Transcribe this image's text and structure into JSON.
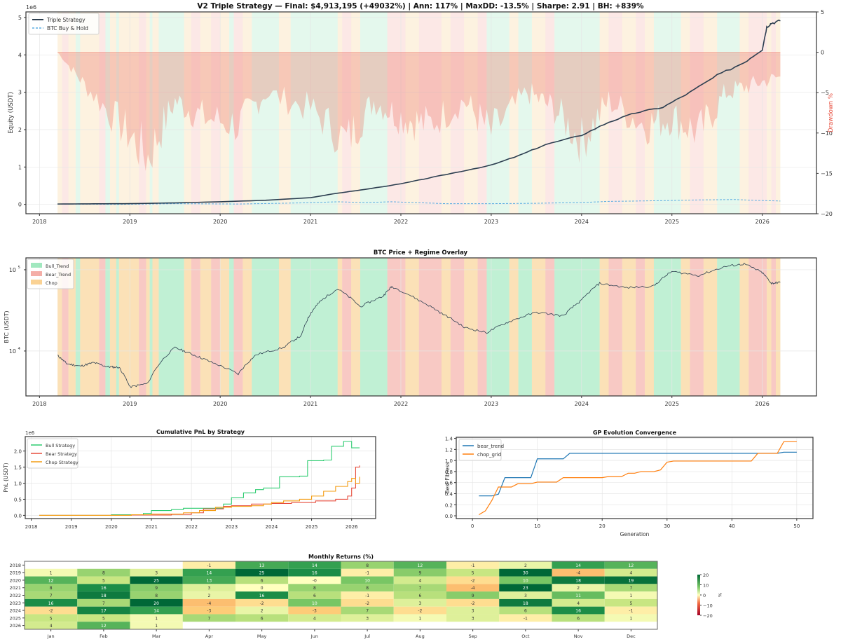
{
  "colors": {
    "bull": "#2ecc71",
    "bear": "#e74c3c",
    "chop": "#f39c12",
    "equity": "#2c3e50",
    "bh": "#5dade2",
    "drawdown": "#e74c3c",
    "bear_trend_line": "#1f77b4",
    "chop_grid_line": "#ff7f0e"
  },
  "chart_data": [
    {
      "id": "equity",
      "type": "line",
      "title": "V2 Triple Strategy — Final: $4,913,195 (+49032%) | Ann: 117% | MaxDD: -13.5% | Sharpe: 2.91 | BH: +839%",
      "ylabel": "Equity (USDT)",
      "y_multiplier": "1e6",
      "y2label": "Drawdown %",
      "xlim": [
        2017.85,
        2026.6
      ],
      "ylim": [
        -0.25,
        5.15
      ],
      "y2lim": [
        -20,
        5
      ],
      "xticks": [
        "2018",
        "2019",
        "2020",
        "2021",
        "2022",
        "2023",
        "2024",
        "2025",
        "2026"
      ],
      "yticks": [
        "0",
        "1",
        "2",
        "3",
        "4",
        "5"
      ],
      "y2ticks": [
        "5",
        "0",
        "−5",
        "−10",
        "−15",
        "−20"
      ],
      "legend": [
        "Triple Strategy",
        "BTC Buy & Hold"
      ],
      "legend_position": "top-left",
      "series": [
        {
          "name": "Triple Strategy",
          "x": [
            2018.2,
            2018.6,
            2019.0,
            2019.5,
            2020.0,
            2020.5,
            2021.0,
            2021.3,
            2021.6,
            2022.0,
            2022.3,
            2022.6,
            2023.0,
            2023.3,
            2023.6,
            2024.0,
            2024.3,
            2024.6,
            2024.9,
            2025.2,
            2025.5,
            2025.8,
            2026.0,
            2026.05,
            2026.1,
            2026.2
          ],
          "y": [
            0.01,
            0.015,
            0.02,
            0.04,
            0.07,
            0.11,
            0.18,
            0.3,
            0.4,
            0.55,
            0.7,
            0.85,
            1.05,
            1.3,
            1.6,
            1.85,
            2.2,
            2.45,
            2.6,
            3.0,
            3.45,
            3.8,
            4.15,
            4.75,
            4.85,
            4.91
          ]
        },
        {
          "name": "BTC Buy & Hold",
          "x": [
            2018.2,
            2018.9,
            2019.5,
            2020.2,
            2020.9,
            2021.3,
            2021.6,
            2021.9,
            2022.5,
            2023.0,
            2023.5,
            2024.0,
            2024.3,
            2024.9,
            2025.3,
            2025.7,
            2025.9,
            2026.2
          ],
          "y": [
            0.01,
            0.0,
            0.02,
            0.01,
            0.04,
            0.07,
            0.05,
            0.07,
            0.02,
            0.02,
            0.03,
            0.05,
            0.08,
            0.1,
            0.12,
            0.13,
            0.11,
            0.09
          ]
        }
      ],
      "drawdown": {
        "x": [
          2018.2,
          2018.5,
          2018.9,
          2019.2,
          2019.5,
          2019.8,
          2020.2,
          2020.5,
          2021.0,
          2021.4,
          2021.7,
          2022.0,
          2022.3,
          2022.7,
          2023.0,
          2023.4,
          2023.7,
          2024.0,
          2024.3,
          2024.7,
          2025.0,
          2025.3,
          2025.6,
          2025.9,
          2026.2
        ],
        "y": [
          0,
          -4,
          -9,
          -13,
          -6,
          -8,
          -9,
          -5,
          -7,
          -11,
          -6,
          -8,
          -9,
          -6,
          -10,
          -5,
          -7,
          -11,
          -6,
          -9,
          -8,
          -10,
          -5,
          -4,
          -3
        ]
      }
    },
    {
      "id": "btc",
      "type": "line",
      "title": "BTC Price + Regime Overlay",
      "ylabel": "BTC (USDT)",
      "yscale": "log",
      "xlim": [
        2017.85,
        2026.6
      ],
      "ylim": [
        2800,
        140000
      ],
      "xticks": [
        "2018",
        "2019",
        "2020",
        "2021",
        "2022",
        "2023",
        "2024",
        "2025",
        "2026"
      ],
      "yticks": [
        {
          "base": "10",
          "exp": "4",
          "value": 10000
        },
        {
          "base": "10",
          "exp": "5",
          "value": 100000
        }
      ],
      "legend": [
        "Bull_Trend",
        "Bear_Trend",
        "Chop"
      ],
      "legend_position": "top-left",
      "x": [
        2018.2,
        2018.3,
        2018.45,
        2018.6,
        2018.75,
        2018.88,
        2019.0,
        2019.2,
        2019.5,
        2019.7,
        2019.9,
        2020.2,
        2020.4,
        2020.7,
        2020.9,
        2021.0,
        2021.1,
        2021.3,
        2021.55,
        2021.8,
        2021.9,
        2022.2,
        2022.45,
        2022.7,
        2022.95,
        2023.2,
        2023.5,
        2023.8,
        2024.0,
        2024.2,
        2024.5,
        2024.8,
        2025.0,
        2025.3,
        2025.6,
        2025.8,
        2026.0,
        2026.1,
        2026.2
      ],
      "y": [
        8800,
        7000,
        6500,
        7200,
        6400,
        6300,
        3600,
        4000,
        11000,
        9000,
        7300,
        5200,
        9000,
        11000,
        15500,
        29000,
        40000,
        58000,
        35000,
        47000,
        62000,
        42000,
        29000,
        19500,
        16800,
        23000,
        30000,
        27000,
        42000,
        68000,
        60000,
        63000,
        95000,
        85000,
        110000,
        118000,
        92000,
        68000,
        70000
      ]
    },
    {
      "id": "pnl",
      "type": "line",
      "title": "Cumulative PnL by Strategy",
      "ylabel": "PnL (USDT)",
      "y_multiplier": "1e6",
      "xlim": [
        2017.85,
        2026.6
      ],
      "ylim": [
        -0.1,
        2.45
      ],
      "xticks": [
        "2018",
        "2019",
        "2020",
        "2021",
        "2022",
        "2023",
        "2024",
        "2025",
        "2026"
      ],
      "yticks": [
        "0.0",
        "0.5",
        "1.0",
        "1.5",
        "2.0"
      ],
      "legend": [
        "Bull Strategy",
        "Bear Strategy",
        "Chop Strategy"
      ],
      "legend_position": "top-left",
      "series": [
        {
          "name": "Bull Strategy",
          "x": [
            2018.2,
            2020.0,
            2020.8,
            2021.0,
            2021.5,
            2021.8,
            2022.3,
            2022.8,
            2023.0,
            2023.3,
            2023.6,
            2023.8,
            2024.2,
            2024.7,
            2024.9,
            2025.3,
            2025.5,
            2025.8,
            2026.0,
            2026.2
          ],
          "y": [
            0.0,
            0.02,
            0.06,
            0.15,
            0.18,
            0.22,
            0.22,
            0.35,
            0.55,
            0.7,
            0.8,
            0.85,
            1.2,
            1.22,
            1.7,
            1.72,
            2.15,
            2.3,
            2.1,
            2.1
          ]
        },
        {
          "name": "Bear Strategy",
          "x": [
            2018.2,
            2020.5,
            2021.5,
            2022.0,
            2022.3,
            2022.8,
            2023.0,
            2023.5,
            2024.0,
            2024.5,
            2025.1,
            2025.6,
            2025.9,
            2026.0,
            2026.1,
            2026.2
          ],
          "y": [
            0.0,
            0.01,
            0.03,
            0.08,
            0.2,
            0.28,
            0.3,
            0.35,
            0.37,
            0.4,
            0.45,
            0.5,
            0.6,
            0.85,
            1.5,
            1.55
          ]
        },
        {
          "name": "Chop Strategy",
          "x": [
            2018.2,
            2020.5,
            2021.0,
            2021.8,
            2022.2,
            2022.6,
            2023.0,
            2023.5,
            2023.8,
            2024.0,
            2024.3,
            2024.7,
            2025.0,
            2025.3,
            2025.6,
            2025.9,
            2026.0,
            2026.1,
            2026.2
          ],
          "y": [
            0.0,
            0.02,
            0.04,
            0.08,
            0.15,
            0.25,
            0.28,
            0.3,
            0.35,
            0.4,
            0.45,
            0.5,
            0.6,
            0.75,
            0.9,
            1.05,
            1.15,
            1.0,
            1.2
          ]
        }
      ]
    },
    {
      "id": "gp",
      "type": "line",
      "title": "GP Evolution Convergence",
      "xlabel": "Generation",
      "ylabel": "Best Fitness",
      "xlim": [
        -2.5,
        52.5
      ],
      "ylim": [
        -0.05,
        1.42
      ],
      "xticks": [
        "0",
        "10",
        "20",
        "30",
        "40",
        "50"
      ],
      "yticks": [
        "0.0",
        "0.2",
        "0.4",
        "0.6",
        "0.8",
        "1.0",
        "1.2",
        "1.4"
      ],
      "legend": [
        "bear_trend",
        "chop_grid"
      ],
      "legend_position": "top-left",
      "series": [
        {
          "name": "bear_trend",
          "x": [
            1,
            2,
            3,
            4,
            5,
            6,
            7,
            8,
            9,
            10,
            11,
            12,
            13,
            14,
            15,
            20,
            30,
            40,
            47,
            48,
            49,
            50
          ],
          "y": [
            0.36,
            0.36,
            0.36,
            0.39,
            0.69,
            0.69,
            0.69,
            0.69,
            0.69,
            1.03,
            1.03,
            1.03,
            1.03,
            1.03,
            1.13,
            1.13,
            1.13,
            1.13,
            1.13,
            1.15,
            1.15,
            1.15
          ]
        },
        {
          "name": "chop_grid",
          "x": [
            1,
            2,
            3,
            4,
            5,
            6,
            7,
            8,
            9,
            10,
            11,
            12,
            13,
            14,
            15,
            20,
            21,
            22,
            23,
            24,
            25,
            26,
            28,
            29,
            30,
            31,
            40,
            43,
            44,
            45,
            46,
            47,
            48,
            49,
            50
          ],
          "y": [
            0.02,
            0.09,
            0.28,
            0.52,
            0.52,
            0.52,
            0.58,
            0.58,
            0.58,
            0.61,
            0.61,
            0.61,
            0.61,
            0.69,
            0.69,
            0.69,
            0.71,
            0.71,
            0.71,
            0.77,
            0.77,
            0.8,
            0.8,
            0.83,
            0.97,
            0.99,
            0.99,
            0.99,
            1.13,
            1.13,
            1.13,
            1.13,
            1.34,
            1.34,
            1.34
          ]
        }
      ]
    },
    {
      "id": "monthly",
      "type": "heatmap",
      "title": "Monthly Returns (%)",
      "rows": [
        "2018",
        "2019",
        "2020",
        "2021",
        "2022",
        "2023",
        "2024",
        "2025",
        "2026"
      ],
      "columns": [
        "Jan",
        "Feb",
        "Mar",
        "Apr",
        "May",
        "Jun",
        "Jul",
        "Aug",
        "Sep",
        "Oct",
        "Nov",
        "Dec"
      ],
      "values": [
        [
          null,
          null,
          null,
          "-1",
          "13",
          "14",
          "8",
          "12",
          "-1",
          "2",
          "14",
          "12"
        ],
        [
          "1",
          "8",
          "3",
          "14",
          "25",
          "16",
          "-1",
          "9",
          "5",
          "30",
          "-4",
          "4"
        ],
        [
          "12",
          "5",
          "25",
          "13",
          "6",
          "-0",
          "10",
          "4",
          "-2",
          "10",
          "18",
          "19"
        ],
        [
          "8",
          "16",
          "9",
          "3",
          "0",
          "8",
          "8",
          "7",
          "-4",
          "23",
          "2",
          "7"
        ],
        [
          "7",
          "18",
          "8",
          "2",
          "16",
          "6",
          "-1",
          "6",
          "9",
          "3",
          "11",
          "1"
        ],
        [
          "16",
          "7",
          "20",
          "-4",
          "-2",
          "10",
          "-2",
          "3",
          "-2",
          "18",
          "4",
          "5"
        ],
        [
          "-2",
          "17",
          "14",
          "-3",
          "2",
          "-3",
          "7",
          "-2",
          "3",
          "6",
          "16",
          "-1"
        ],
        [
          "5",
          "5",
          "1",
          "7",
          "6",
          "4",
          "3",
          "1",
          "3",
          "-1",
          "6",
          "1"
        ],
        [
          "4",
          "12",
          "1",
          null,
          null,
          null,
          null,
          null,
          null,
          null,
          null,
          null
        ]
      ],
      "colorbar": {
        "label": "%",
        "ticks": [
          "20",
          "10",
          "0",
          "−10",
          "−20"
        ],
        "range": [
          -20,
          20
        ]
      }
    }
  ],
  "regimes": {
    "legend": [
      "Bull_Trend",
      "Bear_Trend",
      "Chop"
    ],
    "segments": [
      [
        "chop",
        2018.2,
        2018.25
      ],
      [
        "bear",
        2018.25,
        2018.32
      ],
      [
        "chop",
        2018.32,
        2018.4
      ],
      [
        "bull",
        2018.4,
        2018.45
      ],
      [
        "chop",
        2018.45,
        2018.66
      ],
      [
        "bear",
        2018.66,
        2018.73
      ],
      [
        "bull",
        2018.73,
        2018.78
      ],
      [
        "chop",
        2018.78,
        2018.85
      ],
      [
        "bull",
        2018.85,
        2018.88
      ],
      [
        "chop",
        2018.88,
        2019.1
      ],
      [
        "bear",
        2019.1,
        2019.18
      ],
      [
        "chop",
        2019.18,
        2019.22
      ],
      [
        "bull",
        2019.22,
        2019.25
      ],
      [
        "chop",
        2019.25,
        2019.32
      ],
      [
        "bull",
        2019.32,
        2019.6
      ],
      [
        "chop",
        2019.6,
        2019.68
      ],
      [
        "bear",
        2019.68,
        2019.78
      ],
      [
        "chop",
        2019.78,
        2019.9
      ],
      [
        "bear",
        2019.9,
        2020.0
      ],
      [
        "chop",
        2020.0,
        2020.1
      ],
      [
        "bull",
        2020.1,
        2020.15
      ],
      [
        "bear",
        2020.15,
        2020.25
      ],
      [
        "chop",
        2020.25,
        2020.35
      ],
      [
        "bull",
        2020.35,
        2020.65
      ],
      [
        "chop",
        2020.65,
        2020.78
      ],
      [
        "bull",
        2020.78,
        2021.3
      ],
      [
        "chop",
        2021.3,
        2021.35
      ],
      [
        "bear",
        2021.35,
        2021.45
      ],
      [
        "chop",
        2021.45,
        2021.55
      ],
      [
        "bull",
        2021.55,
        2021.85
      ],
      [
        "bear",
        2021.85,
        2022.05
      ],
      [
        "chop",
        2022.05,
        2022.2
      ],
      [
        "bear",
        2022.2,
        2022.45
      ],
      [
        "chop",
        2022.45,
        2022.55
      ],
      [
        "bear",
        2022.55,
        2022.7
      ],
      [
        "chop",
        2022.7,
        2022.85
      ],
      [
        "bear",
        2022.85,
        2022.95
      ],
      [
        "bull",
        2022.95,
        2023.2
      ],
      [
        "chop",
        2023.2,
        2023.3
      ],
      [
        "bull",
        2023.3,
        2023.45
      ],
      [
        "chop",
        2023.45,
        2023.6
      ],
      [
        "bear",
        2023.6,
        2023.7
      ],
      [
        "bull",
        2023.7,
        2024.2
      ],
      [
        "chop",
        2024.2,
        2024.3
      ],
      [
        "bear",
        2024.3,
        2024.45
      ],
      [
        "chop",
        2024.45,
        2024.6
      ],
      [
        "bear",
        2024.6,
        2024.7
      ],
      [
        "chop",
        2024.7,
        2024.8
      ],
      [
        "bull",
        2024.8,
        2025.1
      ],
      [
        "chop",
        2025.1,
        2025.2
      ],
      [
        "bear",
        2025.2,
        2025.35
      ],
      [
        "chop",
        2025.35,
        2025.5
      ],
      [
        "bull",
        2025.5,
        2025.75
      ],
      [
        "chop",
        2025.75,
        2025.85
      ],
      [
        "bear",
        2025.85,
        2026.05
      ],
      [
        "chop",
        2026.05,
        2026.1
      ],
      [
        "bear",
        2026.1,
        2026.15
      ],
      [
        "chop",
        2026.15,
        2026.2
      ]
    ]
  }
}
